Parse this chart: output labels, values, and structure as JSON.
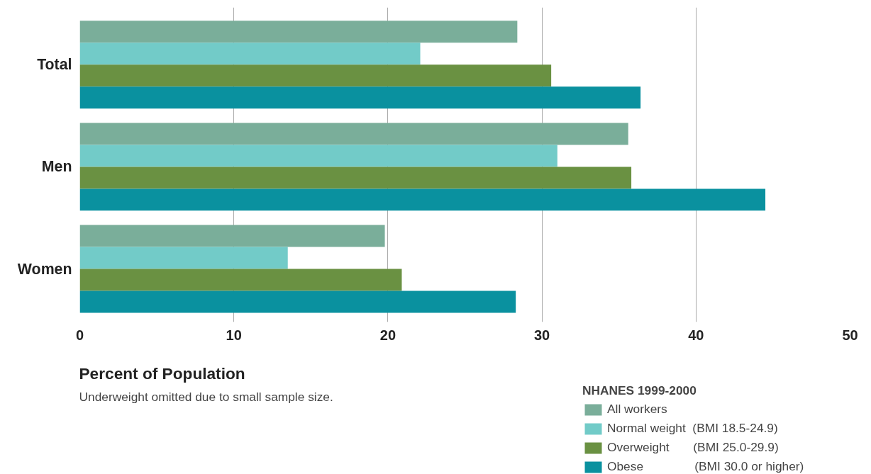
{
  "chart_data": {
    "type": "bar",
    "orientation": "horizontal",
    "categories": [
      "Total",
      "Men",
      "Women"
    ],
    "series": [
      {
        "name": "All workers",
        "color": "#7aae9a",
        "values": [
          28.4,
          35.6,
          19.8
        ]
      },
      {
        "name": "Normal weight  (BMI 18.5-24.9)",
        "color": "#72cbc8",
        "values": [
          22.1,
          31.0,
          13.5
        ]
      },
      {
        "name": "Overweight       (BMI 25.0-29.9)",
        "color": "#6a9142",
        "values": [
          30.6,
          35.8,
          20.9
        ]
      },
      {
        "name": "Obese               (BMI 30.0 or higher)",
        "color": "#0a919f",
        "values": [
          36.4,
          44.5,
          28.3
        ]
      }
    ],
    "xlim": [
      0,
      50
    ],
    "xticks": [
      0,
      10,
      20,
      30,
      40,
      50
    ],
    "grid": "x",
    "xlabel": "Percent of Population",
    "annotations": [
      "Underweight omitted due to small sample size."
    ],
    "legend_title": "NHANES 1999-2000",
    "legend": "bottom right"
  }
}
